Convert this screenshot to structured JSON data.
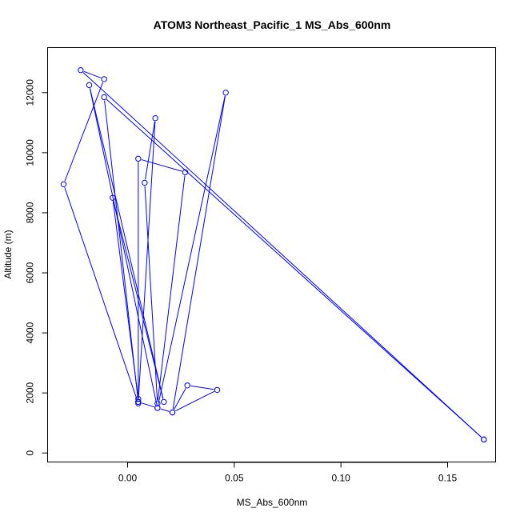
{
  "chart_data": {
    "type": "line",
    "title": "ATOM3 Northeast_Pacific_1 MS_Abs_600nm",
    "xlabel": "MS_Abs_600nm",
    "ylabel": "Altitude (m)",
    "xlim": [
      -0.0375,
      0.1725
    ],
    "ylim": [
      -300,
      13500
    ],
    "x_ticks": [
      0.0,
      0.05,
      0.1,
      0.15
    ],
    "x_tick_labels": [
      "0.00",
      "0.05",
      "0.10",
      "0.15"
    ],
    "y_ticks": [
      0,
      2000,
      4000,
      6000,
      8000,
      10000,
      12000
    ],
    "y_tick_labels": [
      "0",
      "2000",
      "4000",
      "6000",
      "8000",
      "10000",
      "12000"
    ],
    "grid": false,
    "legend": "none",
    "series": [
      {
        "color": "#0000ff",
        "marker": "open-circle",
        "points": [
          {
            "x": 0.167,
            "y": 450
          },
          {
            "x": -0.022,
            "y": 12750
          },
          {
            "x": -0.011,
            "y": 12450
          },
          {
            "x": -0.03,
            "y": 8950
          },
          {
            "x": 0.005,
            "y": 1650
          },
          {
            "x": 0.005,
            "y": 1800
          },
          {
            "x": -0.007,
            "y": 8500
          },
          {
            "x": 0.017,
            "y": 1700
          },
          {
            "x": -0.018,
            "y": 12250
          },
          {
            "x": 0.014,
            "y": 1500
          },
          {
            "x": 0.046,
            "y": 12000
          },
          {
            "x": 0.021,
            "y": 1350
          },
          {
            "x": 0.028,
            "y": 2250
          },
          {
            "x": 0.042,
            "y": 2100
          },
          {
            "x": 0.021,
            "y": 1350
          },
          {
            "x": 0.014,
            "y": 1500
          },
          {
            "x": 0.005,
            "y": 1700
          },
          {
            "x": 0.005,
            "y": 9800
          },
          {
            "x": 0.027,
            "y": 9350
          },
          {
            "x": 0.014,
            "y": 1650
          },
          {
            "x": 0.008,
            "y": 9000
          },
          {
            "x": 0.013,
            "y": 11150
          },
          {
            "x": 0.005,
            "y": 1700
          },
          {
            "x": -0.011,
            "y": 11850
          },
          {
            "x": 0.167,
            "y": 450
          }
        ]
      }
    ]
  }
}
